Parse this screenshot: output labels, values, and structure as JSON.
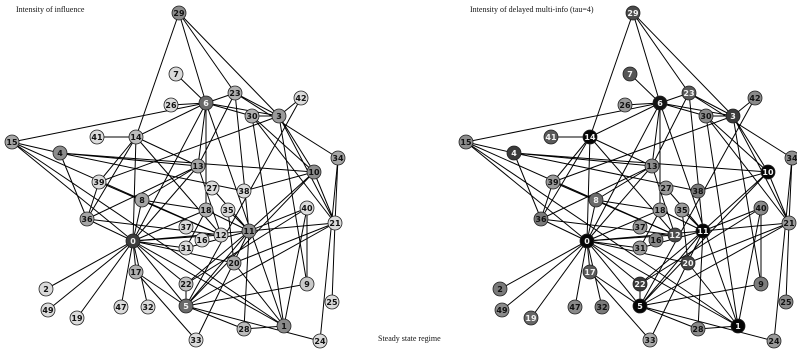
{
  "panels": [
    {
      "id": "left",
      "title": "Intensity of influence"
    },
    {
      "id": "right",
      "title": "Intensity of delayed multi-info (tau=4)"
    }
  ],
  "caption": "Steady state regime",
  "graph": {
    "nodes": {
      "0": {
        "left_fill": "#3c3c3c",
        "right_fill": "#050505"
      },
      "1": {
        "left_fill": "#8a8a8a",
        "right_fill": "#050505"
      },
      "2": {
        "left_fill": "#dadada",
        "right_fill": "#7a7a7a"
      },
      "3": {
        "left_fill": "#9a9a9a",
        "right_fill": "#3a3a3a"
      },
      "4": {
        "left_fill": "#8c8c8c",
        "right_fill": "#3a3a3a"
      },
      "5": {
        "left_fill": "#6a6a6a",
        "right_fill": "#050505"
      },
      "6": {
        "left_fill": "#6a6a6a",
        "right_fill": "#151515"
      },
      "7": {
        "left_fill": "#dadada",
        "right_fill": "#555555"
      },
      "8": {
        "left_fill": "#a6a6a6",
        "right_fill": "#6a6a6a"
      },
      "9": {
        "left_fill": "#c8c8c8",
        "right_fill": "#7c7c7c"
      },
      "10": {
        "left_fill": "#8c8c8c",
        "right_fill": "#050505"
      },
      "11": {
        "left_fill": "#8c8c8c",
        "right_fill": "#050505"
      },
      "12": {
        "left_fill": "#d4d4d4",
        "right_fill": "#4a4a4a"
      },
      "13": {
        "left_fill": "#a6a6a6",
        "right_fill": "#8e8e8e"
      },
      "14": {
        "left_fill": "#bdbdbd",
        "right_fill": "#050505"
      },
      "15": {
        "left_fill": "#a6a6a6",
        "right_fill": "#8e8e8e"
      },
      "16": {
        "left_fill": "#dcdcdc",
        "right_fill": "#888888"
      },
      "17": {
        "left_fill": "#b0b0b0",
        "right_fill": "#5a5a5a"
      },
      "18": {
        "left_fill": "#b0b0b0",
        "right_fill": "#9c9c9c"
      },
      "19": {
        "left_fill": "#dcdcdc",
        "right_fill": "#666666"
      },
      "20": {
        "left_fill": "#aaaaaa",
        "right_fill": "#444444"
      },
      "21": {
        "left_fill": "#dcdcdc",
        "right_fill": "#9a9a9a"
      },
      "22": {
        "left_fill": "#c2c2c2",
        "right_fill": "#3a3a3a"
      },
      "23": {
        "left_fill": "#b0b0b0",
        "right_fill": "#5a5a5a"
      },
      "24": {
        "left_fill": "#dcdcdc",
        "right_fill": "#9a9a9a"
      },
      "25": {
        "left_fill": "#dcdcdc",
        "right_fill": "#8a8a8a"
      },
      "26": {
        "left_fill": "#dcdcdc",
        "right_fill": "#9a9a9a"
      },
      "27": {
        "left_fill": "#dcdcdc",
        "right_fill": "#9a9a9a"
      },
      "28": {
        "left_fill": "#bdbdbd",
        "right_fill": "#8a8a8a"
      },
      "29": {
        "left_fill": "#8c8c8c",
        "right_fill": "#4a4a4a"
      },
      "30": {
        "left_fill": "#b0b0b0",
        "right_fill": "#8a8a8a"
      },
      "31": {
        "left_fill": "#dcdcdc",
        "right_fill": "#9a9a9a"
      },
      "32": {
        "left_fill": "#dcdcdc",
        "right_fill": "#7a7a7a"
      },
      "33": {
        "left_fill": "#dcdcdc",
        "right_fill": "#aaaaaa"
      },
      "34": {
        "left_fill": "#a6a6a6",
        "right_fill": "#8e8e8e"
      },
      "35": {
        "left_fill": "#dcdcdc",
        "right_fill": "#9c9c9c"
      },
      "36": {
        "left_fill": "#a6a6a6",
        "right_fill": "#7a7a7a"
      },
      "37": {
        "left_fill": "#dcdcdc",
        "right_fill": "#9a9a9a"
      },
      "38": {
        "left_fill": "#dcdcdc",
        "right_fill": "#7a7a7a"
      },
      "39": {
        "left_fill": "#dcdcdc",
        "right_fill": "#9a9a9a"
      },
      "40": {
        "left_fill": "#dcdcdc",
        "right_fill": "#8a8a8a"
      },
      "41": {
        "left_fill": "#dcdcdc",
        "right_fill": "#5a5a5a"
      },
      "42": {
        "left_fill": "#dcdcdc",
        "right_fill": "#8a8a8a"
      }
    },
    "edges": [
      [
        "29",
        "6"
      ],
      [
        "29",
        "3"
      ],
      [
        "29",
        "14"
      ],
      [
        "29",
        "23"
      ],
      [
        "6",
        "14"
      ],
      [
        "6",
        "0"
      ],
      [
        "6",
        "13"
      ],
      [
        "6",
        "18"
      ],
      [
        "6",
        "30"
      ],
      [
        "6",
        "3"
      ],
      [
        "6",
        "1"
      ],
      [
        "6",
        "23"
      ],
      [
        "6",
        "26"
      ],
      [
        "6",
        "7"
      ],
      [
        "6",
        "15"
      ],
      [
        "23",
        "13"
      ],
      [
        "23",
        "3"
      ],
      [
        "23",
        "11"
      ],
      [
        "23",
        "34"
      ],
      [
        "3",
        "30"
      ],
      [
        "3",
        "10"
      ],
      [
        "3",
        "21"
      ],
      [
        "3",
        "39"
      ],
      [
        "3",
        "9"
      ],
      [
        "3",
        "42"
      ],
      [
        "30",
        "1"
      ],
      [
        "30",
        "10"
      ],
      [
        "30",
        "21"
      ],
      [
        "14",
        "13"
      ],
      [
        "14",
        "0"
      ],
      [
        "14",
        "36"
      ],
      [
        "14",
        "41"
      ],
      [
        "14",
        "39"
      ],
      [
        "4",
        "13"
      ],
      [
        "4",
        "38"
      ],
      [
        "4",
        "36"
      ],
      [
        "4",
        "10"
      ],
      [
        "15",
        "12"
      ],
      [
        "15",
        "0"
      ],
      [
        "15",
        "1"
      ],
      [
        "15",
        "4"
      ],
      [
        "13",
        "8"
      ],
      [
        "13",
        "0"
      ],
      [
        "13",
        "36"
      ],
      [
        "13",
        "12"
      ],
      [
        "12",
        "0"
      ],
      [
        "12",
        "14"
      ],
      [
        "12",
        "39"
      ],
      [
        "10",
        "38"
      ],
      [
        "10",
        "11"
      ],
      [
        "10",
        "21"
      ],
      [
        "10",
        "5"
      ],
      [
        "34",
        "21"
      ],
      [
        "34",
        "24"
      ],
      [
        "21",
        "11"
      ],
      [
        "21",
        "5"
      ],
      [
        "21",
        "20"
      ],
      [
        "21",
        "25"
      ],
      [
        "11",
        "40"
      ],
      [
        "11",
        "0"
      ],
      [
        "11",
        "35"
      ],
      [
        "11",
        "22"
      ],
      [
        "11",
        "5"
      ],
      [
        "11",
        "27"
      ],
      [
        "11",
        "33"
      ],
      [
        "11",
        "28"
      ],
      [
        "40",
        "1"
      ],
      [
        "40",
        "9"
      ],
      [
        "0",
        "8"
      ],
      [
        "0",
        "36"
      ],
      [
        "0",
        "17"
      ],
      [
        "0",
        "2"
      ],
      [
        "0",
        "49"
      ],
      [
        "0",
        "19"
      ],
      [
        "0",
        "47"
      ],
      [
        "0",
        "32"
      ],
      [
        "0",
        "20"
      ],
      [
        "0",
        "22"
      ],
      [
        "0",
        "1"
      ],
      [
        "0",
        "18"
      ],
      [
        "0",
        "31"
      ],
      [
        "0",
        "5"
      ],
      [
        "17",
        "5"
      ],
      [
        "17",
        "33"
      ],
      [
        "22",
        "5"
      ],
      [
        "22",
        "40"
      ],
      [
        "20",
        "1"
      ],
      [
        "20",
        "35"
      ],
      [
        "5",
        "9"
      ],
      [
        "5",
        "24"
      ],
      [
        "5",
        "28"
      ],
      [
        "5",
        "42"
      ],
      [
        "31",
        "11"
      ],
      [
        "31",
        "18"
      ],
      [
        "18",
        "11"
      ],
      [
        "18",
        "8"
      ],
      [
        "28",
        "1"
      ],
      [
        "36",
        "12"
      ],
      [
        "36",
        "39"
      ]
    ]
  }
}
